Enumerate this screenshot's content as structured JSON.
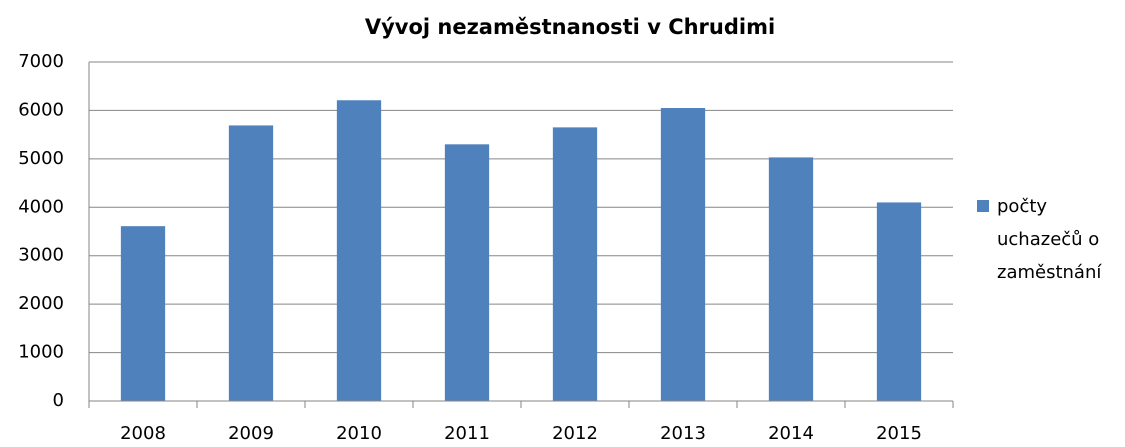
{
  "chart_data": {
    "type": "bar",
    "title": "Vývoj nezaměstnanosti v Chrudimi",
    "categories": [
      "2008",
      "2009",
      "2010",
      "2011",
      "2012",
      "2013",
      "2014",
      "2015"
    ],
    "series": [
      {
        "name": "počty uchazečů o zaměstnání",
        "color": "#4f81bd",
        "values": [
          3610,
          5690,
          6210,
          5300,
          5650,
          6050,
          5030,
          4100
        ]
      }
    ],
    "ylim": [
      0,
      7000
    ],
    "yticks": [
      0,
      1000,
      2000,
      3000,
      4000,
      5000,
      6000,
      7000
    ],
    "grid": true,
    "legend": "right"
  }
}
